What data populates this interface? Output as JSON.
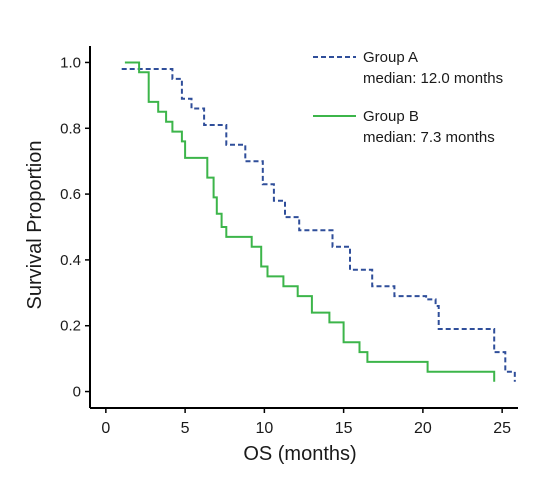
{
  "chart_data": {
    "type": "line",
    "xlabel": "OS (months)",
    "ylabel": "Survival Proportion",
    "xlim": [
      -1,
      26
    ],
    "ylim": [
      -0.05,
      1.05
    ],
    "x_ticks": [
      0,
      5,
      10,
      15,
      20,
      25
    ],
    "x_tick_labels": [
      "0",
      "5",
      "10",
      "15",
      "20",
      "25"
    ],
    "y_ticks": [
      0,
      0.2,
      0.4,
      0.6,
      0.8,
      1.0
    ],
    "y_tick_labels": [
      "0",
      "0.2",
      "0.4",
      "0.6",
      "0.8",
      "1.0"
    ],
    "grid": false,
    "legend_position": "top-right",
    "series": [
      {
        "name": "Group A",
        "note": "median: 12.0 months",
        "style": "dashed",
        "color": "#2f4e9a",
        "x": [
          1.0,
          2.2,
          4.2,
          4.8,
          5.4,
          6.2,
          7.6,
          8.8,
          9.9,
          10.6,
          11.3,
          12.2,
          14.3,
          15.4,
          16.8,
          18.2,
          20.2,
          20.8,
          21.0,
          23.5,
          24.5,
          25.2,
          25.8
        ],
        "y": [
          0.98,
          0.98,
          0.95,
          0.89,
          0.86,
          0.81,
          0.75,
          0.7,
          0.63,
          0.58,
          0.53,
          0.49,
          0.44,
          0.37,
          0.32,
          0.29,
          0.28,
          0.26,
          0.19,
          0.19,
          0.12,
          0.06,
          0.03
        ]
      },
      {
        "name": "Group B",
        "note": "median: 7.3 months",
        "style": "solid",
        "color": "#3cb54a",
        "x": [
          1.2,
          2.1,
          2.7,
          3.3,
          3.8,
          4.2,
          4.8,
          5.0,
          6.4,
          6.8,
          7.0,
          7.3,
          7.6,
          9.2,
          9.8,
          10.2,
          11.2,
          12.1,
          13.0,
          14.1,
          15.0,
          16.0,
          16.5,
          20.3,
          24.5
        ],
        "y": [
          1.0,
          0.97,
          0.88,
          0.85,
          0.82,
          0.79,
          0.76,
          0.71,
          0.65,
          0.59,
          0.54,
          0.5,
          0.47,
          0.44,
          0.38,
          0.35,
          0.32,
          0.29,
          0.24,
          0.21,
          0.15,
          0.12,
          0.09,
          0.06,
          0.03
        ]
      }
    ]
  }
}
